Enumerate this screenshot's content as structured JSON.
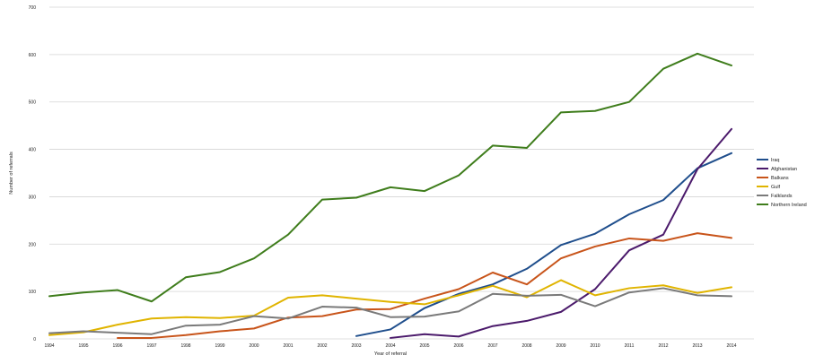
{
  "chart_data": {
    "type": "line",
    "title": "",
    "xlabel": "Year of referral",
    "ylabel": "Number of referrals",
    "ylim": [
      0,
      700
    ],
    "yticks": [
      0,
      100,
      200,
      300,
      400,
      500,
      600,
      700
    ],
    "grid": true,
    "legend_position": "right",
    "categories": [
      "1994",
      "1995",
      "1996",
      "1997",
      "1998",
      "1999",
      "2000",
      "2001",
      "2002",
      "2003",
      "2004",
      "2005",
      "2006",
      "2007",
      "2008",
      "2009",
      "2010",
      "2011",
      "2012",
      "2013",
      "2014"
    ],
    "series": [
      {
        "name": "Iraq",
        "color": "#1f4e8c",
        "values": [
          null,
          null,
          null,
          null,
          null,
          null,
          null,
          null,
          null,
          6,
          20,
          65,
          95,
          115,
          148,
          198,
          222,
          263,
          293,
          360,
          392
        ]
      },
      {
        "name": "Afghanistan",
        "color": "#4b1a6b",
        "values": [
          null,
          null,
          null,
          null,
          null,
          null,
          null,
          null,
          null,
          null,
          2,
          10,
          5,
          27,
          38,
          57,
          105,
          187,
          220,
          358,
          443
        ]
      },
      {
        "name": "Balkans",
        "color": "#c8541a",
        "values": [
          null,
          null,
          2,
          2,
          8,
          16,
          22,
          45,
          48,
          62,
          63,
          85,
          105,
          140,
          115,
          170,
          195,
          212,
          207,
          223,
          213
        ]
      },
      {
        "name": "Gulf",
        "color": "#e0b400",
        "values": [
          8,
          14,
          30,
          43,
          46,
          44,
          49,
          87,
          92,
          85,
          78,
          73,
          92,
          112,
          88,
          124,
          92,
          107,
          113,
          97,
          109
        ]
      },
      {
        "name": "Falklands",
        "color": "#7a7a7a",
        "values": [
          12,
          16,
          13,
          10,
          28,
          30,
          48,
          43,
          68,
          66,
          46,
          47,
          58,
          95,
          91,
          93,
          69,
          98,
          107,
          92,
          90
        ]
      },
      {
        "name": "Northern Ireland",
        "color": "#3f7d1c",
        "values": [
          90,
          98,
          103,
          79,
          130,
          141,
          170,
          220,
          294,
          298,
          320,
          312,
          345,
          408,
          403,
          478,
          481,
          500,
          570,
          602,
          577
        ]
      }
    ]
  }
}
